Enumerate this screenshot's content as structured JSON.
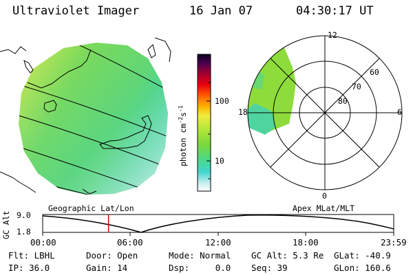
{
  "header": {
    "title": "Ultraviolet Imager",
    "date": "16 Jan 07",
    "time": "04:30:17 UT"
  },
  "colorbar": {
    "label": "photon cm-2s-1",
    "ticks": [
      "100",
      "10"
    ]
  },
  "panels": {
    "left_label": "Geographic Lat/Lon",
    "right_label": "Apex MLat/MLT"
  },
  "polar": {
    "mlt_labels": [
      "12",
      "18",
      "6",
      "0"
    ],
    "lat_labels": [
      "60",
      "70",
      "80"
    ]
  },
  "altitude_plot": {
    "axis_label": "GC Alt",
    "y_ticks": [
      "9.0",
      "1.8"
    ],
    "x_ticks": [
      "00:00",
      "06:00",
      "12:00",
      "18:00",
      "23:59"
    ],
    "current_time_fraction": 0.1875
  },
  "info": {
    "filter": "Flt: LBHL",
    "ip": "IP: 36.0",
    "door": "Door: Open",
    "gain": "Gain: 14",
    "mode": "Mode: Normal",
    "dsp": "Dsp:     0.0",
    "gc_alt": "GC Alt: 5.3 Re",
    "seq": "Seq: 39",
    "glat": "GLat: -40.9",
    "glon": "GLon: 160.6"
  },
  "colors": {
    "imager_main": "#8fdc3a",
    "imager_yellow": "#e6ee55",
    "imager_teal": "#3fd4b0",
    "marker": "#e00000"
  }
}
